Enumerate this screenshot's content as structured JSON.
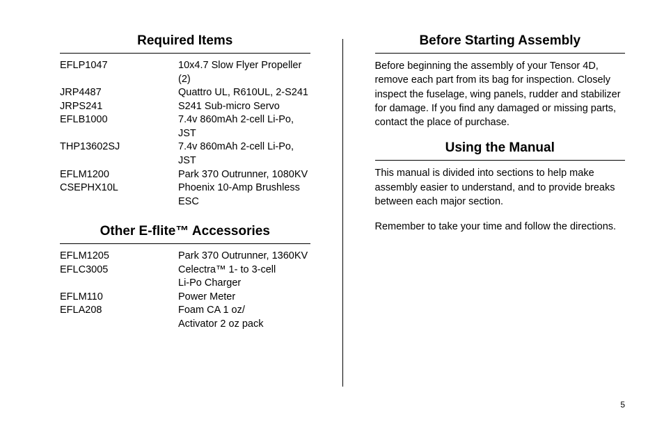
{
  "left": {
    "required_heading": "Required Items",
    "required_items": [
      {
        "code": "EFLP1047",
        "desc": "10x4.7 Slow Flyer Propeller (2)"
      },
      {
        "code": "JRP4487",
        "desc": "Quattro UL, R610UL, 2-S241"
      },
      {
        "code": "JRPS241",
        "desc": "S241 Sub-micro Servo"
      },
      {
        "code": "EFLB1000",
        "desc": "7.4v 860mAh 2-cell Li-Po, JST"
      },
      {
        "code": "THP13602SJ",
        "desc": "7.4v 860mAh 2-cell Li-Po, JST"
      },
      {
        "code": "EFLM1200",
        "desc": "Park 370 Outrunner, 1080KV"
      },
      {
        "code": "CSEPHX10L",
        "desc": "Phoenix 10-Amp Brushless ESC"
      }
    ],
    "accessories_heading": "Other E-flite™ Accessories",
    "accessory_items": [
      {
        "code": "EFLM1205",
        "desc": "Park 370 Outrunner, 1360KV"
      },
      {
        "code": "EFLC3005",
        "desc": "Celectra™ 1- to 3-cell"
      },
      {
        "code": "",
        "desc": "Li-Po Charger"
      },
      {
        "code": "EFLM110",
        "desc": "Power Meter"
      },
      {
        "code": "EFLA208",
        "desc": "Foam CA 1 oz/"
      },
      {
        "code": "",
        "desc": "Activator 2 oz pack"
      }
    ]
  },
  "right": {
    "before_heading": "Before Starting Assembly",
    "before_para": "Before beginning the assembly of your Tensor 4D, remove each part from its bag for inspection. Closely inspect the fuselage, wing panels, rudder and stabilizer for damage. If you find any damaged or missing parts, contact the place of purchase.",
    "manual_heading": "Using the Manual",
    "manual_para1": "This manual is divided into sections to help make assembly easier to understand, and to provide breaks between each major section.",
    "manual_para2": "Remember to take your time and follow the directions."
  },
  "page_number": "5"
}
